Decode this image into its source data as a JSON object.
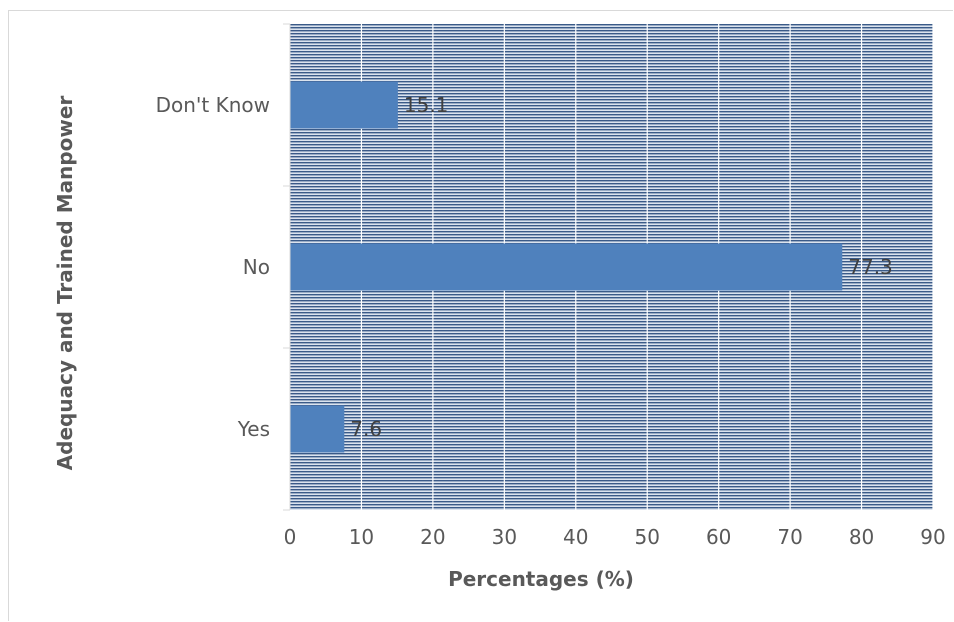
{
  "chart_data": {
    "type": "bar",
    "orientation": "horizontal",
    "categories": [
      "Don't Know",
      "No",
      "Yes"
    ],
    "values": [
      15.1,
      77.3,
      7.6
    ],
    "data_labels": [
      "15.1",
      "77.3",
      "7.6"
    ],
    "xlabel": "Percentages (%)",
    "ylabel": "Adequacy and Trained Manpower",
    "xlim": [
      0,
      90
    ],
    "x_ticks": [
      "0",
      "10",
      "20",
      "30",
      "40",
      "50",
      "60",
      "70",
      "80",
      "90"
    ],
    "grid": true,
    "legend": "none",
    "colors": {
      "bar": "#4f81bd",
      "plot_background": "#dbe3ee",
      "hatch_lines": "#3a5a88",
      "gridlines": "#ffffff",
      "axis": "#d9d9d9"
    }
  }
}
